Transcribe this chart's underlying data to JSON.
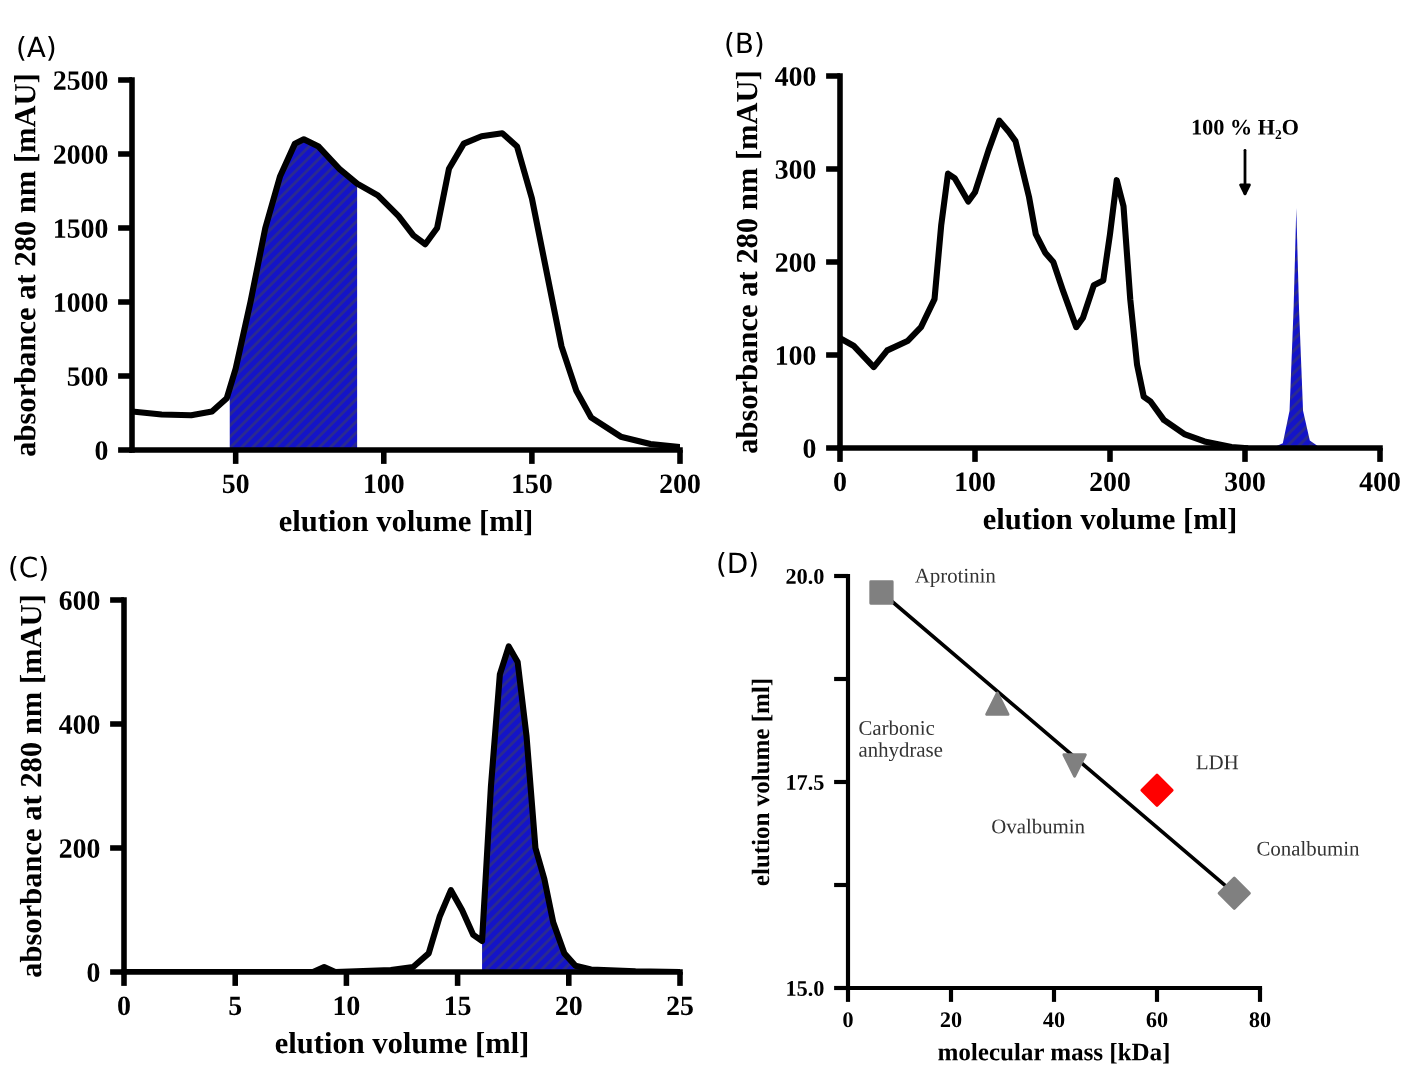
{
  "chart_data": [
    {
      "type": "line",
      "title": "(A)",
      "xlabel": "elution volume [ml]",
      "ylabel": "absorbance at 280 nm [mAU]",
      "xlim": [
        15,
        200
      ],
      "xticks": [
        50,
        100,
        150,
        200
      ],
      "ylim": [
        0,
        2500
      ],
      "yticks": [
        0,
        500,
        1000,
        1500,
        2000,
        2500
      ],
      "grid": false,
      "legend": false,
      "marker": "none",
      "line_style": "solid",
      "series": [
        {
          "type": "area",
          "color": "#1414c8",
          "x": [
            48,
            50,
            55,
            60,
            65,
            70,
            73,
            78,
            85,
            91
          ],
          "values": [
            450,
            550,
            1000,
            1500,
            1850,
            2070,
            2100,
            2050,
            1900,
            1800
          ]
        },
        {
          "type": "line",
          "color": "#000000",
          "x": [
            15,
            25,
            35,
            42,
            47,
            50,
            55,
            60,
            65,
            70,
            73,
            78,
            85,
            91,
            98,
            105,
            110,
            114,
            118,
            122,
            127,
            133,
            140,
            145,
            150,
            155,
            160,
            165,
            170,
            180,
            190,
            200
          ],
          "values": [
            260,
            240,
            235,
            260,
            350,
            550,
            1000,
            1500,
            1850,
            2070,
            2100,
            2050,
            1900,
            1800,
            1720,
            1580,
            1450,
            1390,
            1500,
            1900,
            2070,
            2120,
            2140,
            2050,
            1700,
            1200,
            700,
            400,
            220,
            90,
            40,
            20
          ]
        }
      ]
    },
    {
      "type": "line",
      "title": "(B)",
      "xlabel": "elution volume [ml]",
      "ylabel": "absorbance at 280 nm [mAU]",
      "xlim": [
        0,
        400
      ],
      "xticks": [
        0,
        100,
        200,
        300,
        400
      ],
      "ylim": [
        0,
        400
      ],
      "yticks": [
        0,
        100,
        200,
        300,
        400
      ],
      "grid": false,
      "legend": false,
      "marker": "none",
      "line_style": "solid",
      "annotations": [
        "100 % H₂O"
      ],
      "series": [
        {
          "type": "line",
          "color": "#000000",
          "x": [
            0,
            10,
            25,
            35,
            50,
            60,
            70,
            75,
            80,
            85,
            95,
            100,
            110,
            118,
            125,
            130,
            140,
            145,
            152,
            158,
            165,
            175,
            180,
            188,
            195,
            200,
            205,
            210,
            215,
            220,
            225,
            230,
            240,
            255,
            270,
            290,
            300
          ],
          "values": [
            118,
            110,
            87,
            105,
            115,
            130,
            160,
            240,
            295,
            290,
            265,
            275,
            320,
            352,
            340,
            330,
            270,
            230,
            210,
            200,
            170,
            130,
            140,
            175,
            180,
            230,
            288,
            260,
            160,
            90,
            55,
            50,
            30,
            15,
            7,
            1,
            0
          ]
        },
        {
          "type": "area",
          "color": "#1414c8",
          "x": [
            320,
            328,
            333,
            336,
            338,
            340,
            343,
            348,
            356
          ],
          "values": [
            0,
            5,
            40,
            150,
            258,
            150,
            40,
            8,
            0
          ]
        }
      ]
    },
    {
      "type": "line",
      "title": "(C)",
      "xlabel": "elution volume [ml]",
      "ylabel": "absorbance at 280 nm [mAU]",
      "xlim": [
        0,
        25
      ],
      "xticks": [
        0,
        5,
        10,
        15,
        20,
        25
      ],
      "ylim": [
        0,
        600
      ],
      "yticks": [
        0,
        200,
        400,
        600
      ],
      "grid": false,
      "legend": false,
      "marker": "none",
      "line_style": "solid",
      "series": [
        {
          "type": "area",
          "color": "#1414c8",
          "x": [
            16.1,
            16.5,
            16.9,
            17.3,
            17.7,
            18.1,
            18.5,
            18.9,
            19.3,
            19.8,
            20.3,
            20.5
          ],
          "values": [
            50,
            300,
            480,
            525,
            500,
            380,
            200,
            150,
            80,
            30,
            10,
            6
          ]
        },
        {
          "type": "line",
          "color": "#000000",
          "x": [
            0,
            8.5,
            9,
            9.5,
            12,
            13,
            13.7,
            14.2,
            14.7,
            15.2,
            15.7,
            16.1,
            16.5,
            16.9,
            17.3,
            17.7,
            18.1,
            18.5,
            18.9,
            19.3,
            19.8,
            20.3,
            21,
            23,
            25
          ],
          "values": [
            0,
            0,
            8,
            0,
            3,
            8,
            30,
            90,
            132,
            100,
            60,
            50,
            300,
            480,
            525,
            500,
            380,
            200,
            150,
            80,
            30,
            10,
            4,
            1,
            0
          ]
        }
      ]
    },
    {
      "type": "scatter",
      "title": "(D)",
      "xlabel": "molecular mass [kDa]",
      "ylabel": "elution volume [ml]",
      "xlim": [
        0,
        80
      ],
      "xticks": [
        0,
        20,
        40,
        60,
        80
      ],
      "ylim": [
        15,
        20
      ],
      "yticks": [
        {
          "value": 15,
          "label": "15.0"
        },
        {
          "value": 16.25,
          "label": null
        },
        {
          "value": 17.5,
          "label": "17.5"
        },
        {
          "value": 18.75,
          "label": null
        },
        {
          "value": 20,
          "label": "20.0"
        }
      ],
      "grid": false,
      "legend": false,
      "annotations": [
        {
          "text": "Aprotinin",
          "x": 6.5,
          "y": 19.8
        },
        {
          "text": "Carbonic\nanhydrase",
          "x": 29,
          "y": 18.45
        },
        {
          "text": "Ovalbumin",
          "x": 44,
          "y": 17.7
        },
        {
          "text": "LDH",
          "x": 60,
          "y": 17.4
        },
        {
          "text": "Conalbumin",
          "x": 75,
          "y": 16.15
        }
      ],
      "series": [
        {
          "type": "line",
          "color": "#000000",
          "marker": "none",
          "line_style": "solid",
          "x": [
            6.5,
            75
          ],
          "values": [
            19.8,
            16.15
          ]
        },
        {
          "type": "scatter",
          "color": "#808080",
          "marker": "square",
          "x": [
            6.5
          ],
          "values": [
            19.8
          ]
        },
        {
          "type": "scatter",
          "color": "#808080",
          "marker": "triangle",
          "x": [
            29
          ],
          "values": [
            18.45
          ]
        },
        {
          "type": "scatter",
          "color": "#808080",
          "marker": "triangle_down",
          "x": [
            44
          ],
          "values": [
            17.7
          ]
        },
        {
          "type": "scatter",
          "color": "#ff0000",
          "marker": "diamond",
          "x": [
            60
          ],
          "values": [
            17.4
          ]
        },
        {
          "type": "scatter",
          "color": "#808080",
          "marker": "diamond",
          "x": [
            75
          ],
          "values": [
            16.15
          ]
        }
      ]
    }
  ]
}
